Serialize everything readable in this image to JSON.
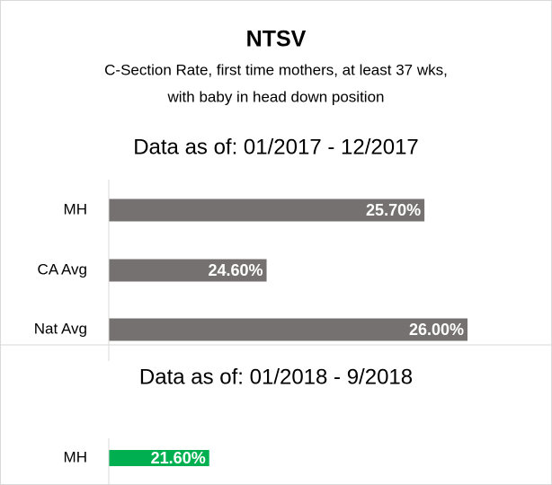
{
  "header": {
    "title": "NTSV",
    "subtitle": [
      "C-Section Rate, first time mothers, at least 37 wks,",
      "with baby in head down position"
    ]
  },
  "chart_data": [
    {
      "type": "bar",
      "orientation": "horizontal",
      "title": "Data as of: 01/2017 - 12/2017",
      "categories": [
        "MH",
        "CA Avg",
        "Nat Avg"
      ],
      "values": [
        25.7,
        24.6,
        26.0
      ],
      "value_labels": [
        "25.70%",
        "24.60%",
        "26.00%"
      ],
      "color": "#767171",
      "xlim": [
        23.5,
        26.0
      ]
    },
    {
      "type": "bar",
      "orientation": "horizontal",
      "title": "Data as of: 01/2018 - 9/2018",
      "categories": [
        "MH"
      ],
      "values": [
        21.6
      ],
      "value_labels": [
        "21.60%"
      ],
      "color": "#00b050",
      "xlim": [
        20.9,
        23.4
      ]
    }
  ]
}
